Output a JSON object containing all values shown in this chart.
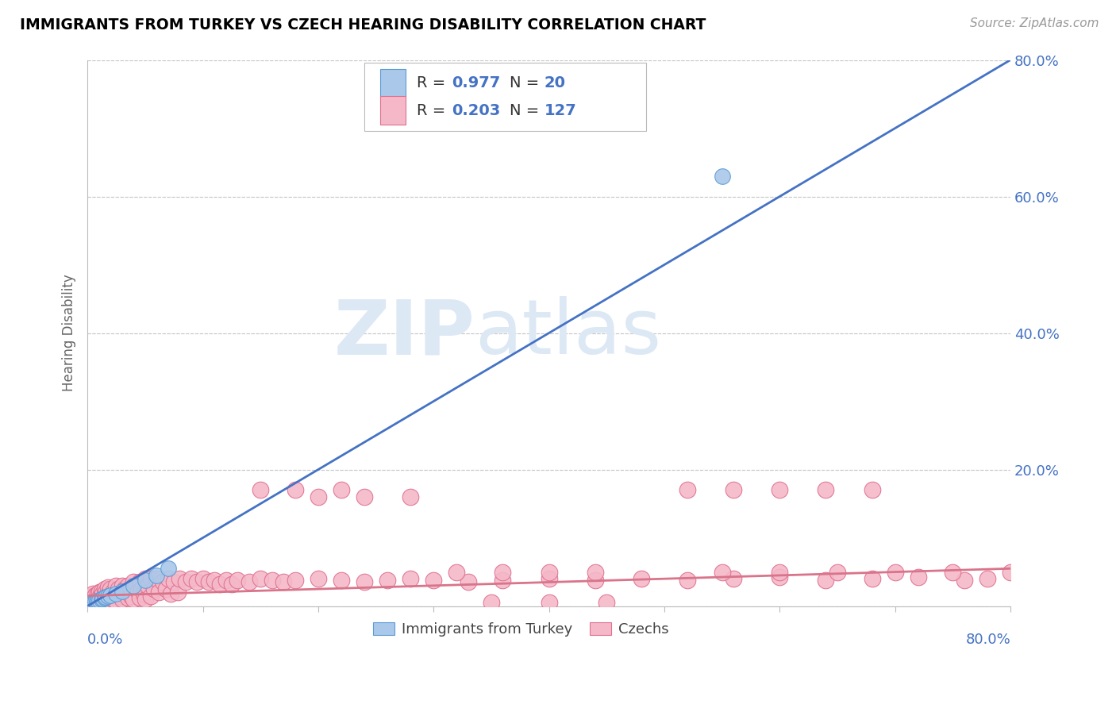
{
  "title": "IMMIGRANTS FROM TURKEY VS CZECH HEARING DISABILITY CORRELATION CHART",
  "source": "Source: ZipAtlas.com",
  "ylabel": "Hearing Disability",
  "xlim": [
    0,
    0.8
  ],
  "ylim": [
    0,
    0.8
  ],
  "blue_R": 0.977,
  "blue_N": 20,
  "pink_R": 0.203,
  "pink_N": 127,
  "blue_color": "#aac8ea",
  "blue_edge_color": "#5b9bd5",
  "pink_color": "#f4b8c8",
  "pink_edge_color": "#e07090",
  "blue_line_color": "#4472c4",
  "pink_line_color": "#d9748a",
  "legend_label_blue": "Immigrants from Turkey",
  "legend_label_pink": "Czechs",
  "watermark_zip": "ZIP",
  "watermark_atlas": "atlas",
  "background_color": "#ffffff",
  "grid_color": "#c8c8c8",
  "title_color": "#000000",
  "axis_label_color": "#4472c4",
  "blue_scatter_x": [
    0.002,
    0.004,
    0.005,
    0.007,
    0.008,
    0.009,
    0.01,
    0.012,
    0.013,
    0.015,
    0.016,
    0.018,
    0.02,
    0.025,
    0.03,
    0.04,
    0.05,
    0.06,
    0.07,
    0.55
  ],
  "blue_scatter_y": [
    0.003,
    0.005,
    0.004,
    0.006,
    0.007,
    0.008,
    0.009,
    0.01,
    0.011,
    0.012,
    0.013,
    0.015,
    0.016,
    0.018,
    0.022,
    0.03,
    0.038,
    0.045,
    0.055,
    0.63
  ],
  "pink_scatter_x": [
    0.001,
    0.002,
    0.003,
    0.004,
    0.004,
    0.005,
    0.005,
    0.006,
    0.006,
    0.007,
    0.007,
    0.008,
    0.009,
    0.009,
    0.01,
    0.01,
    0.011,
    0.012,
    0.012,
    0.013,
    0.014,
    0.015,
    0.015,
    0.016,
    0.017,
    0.018,
    0.018,
    0.019,
    0.02,
    0.02,
    0.022,
    0.022,
    0.024,
    0.025,
    0.025,
    0.027,
    0.028,
    0.029,
    0.03,
    0.03,
    0.032,
    0.033,
    0.035,
    0.035,
    0.037,
    0.038,
    0.04,
    0.04,
    0.042,
    0.044,
    0.045,
    0.045,
    0.047,
    0.049,
    0.05,
    0.05,
    0.052,
    0.055,
    0.055,
    0.058,
    0.06,
    0.062,
    0.065,
    0.068,
    0.07,
    0.072,
    0.075,
    0.078,
    0.08,
    0.085,
    0.09,
    0.095,
    0.1,
    0.105,
    0.11,
    0.115,
    0.12,
    0.125,
    0.13,
    0.14,
    0.15,
    0.16,
    0.17,
    0.18,
    0.2,
    0.22,
    0.24,
    0.26,
    0.28,
    0.3,
    0.33,
    0.36,
    0.4,
    0.44,
    0.48,
    0.52,
    0.56,
    0.6,
    0.64,
    0.68,
    0.72,
    0.76,
    0.78,
    0.52,
    0.56,
    0.6,
    0.64,
    0.68,
    0.2,
    0.24,
    0.28,
    0.32,
    0.36,
    0.15,
    0.18,
    0.22,
    0.4,
    0.44,
    0.55,
    0.6,
    0.65,
    0.7,
    0.75,
    0.8,
    0.35,
    0.4,
    0.45
  ],
  "pink_scatter_y": [
    0.01,
    0.008,
    0.012,
    0.015,
    0.006,
    0.018,
    0.009,
    0.014,
    0.007,
    0.016,
    0.005,
    0.012,
    0.018,
    0.008,
    0.02,
    0.007,
    0.015,
    0.022,
    0.006,
    0.018,
    0.012,
    0.025,
    0.007,
    0.02,
    0.015,
    0.028,
    0.008,
    0.022,
    0.025,
    0.006,
    0.02,
    0.01,
    0.018,
    0.03,
    0.008,
    0.025,
    0.015,
    0.02,
    0.03,
    0.01,
    0.025,
    0.018,
    0.03,
    0.012,
    0.022,
    0.015,
    0.035,
    0.01,
    0.028,
    0.022,
    0.035,
    0.012,
    0.025,
    0.018,
    0.04,
    0.01,
    0.03,
    0.04,
    0.015,
    0.025,
    0.04,
    0.02,
    0.035,
    0.025,
    0.04,
    0.018,
    0.035,
    0.02,
    0.04,
    0.035,
    0.04,
    0.035,
    0.04,
    0.035,
    0.038,
    0.032,
    0.038,
    0.032,
    0.038,
    0.035,
    0.04,
    0.038,
    0.035,
    0.038,
    0.04,
    0.038,
    0.035,
    0.038,
    0.04,
    0.038,
    0.035,
    0.038,
    0.04,
    0.038,
    0.04,
    0.038,
    0.04,
    0.042,
    0.038,
    0.04,
    0.042,
    0.038,
    0.04,
    0.17,
    0.17,
    0.17,
    0.17,
    0.17,
    0.16,
    0.16,
    0.16,
    0.05,
    0.05,
    0.17,
    0.17,
    0.17,
    0.05,
    0.05,
    0.05,
    0.05,
    0.05,
    0.05,
    0.05,
    0.05,
    0.005,
    0.005,
    0.005
  ]
}
